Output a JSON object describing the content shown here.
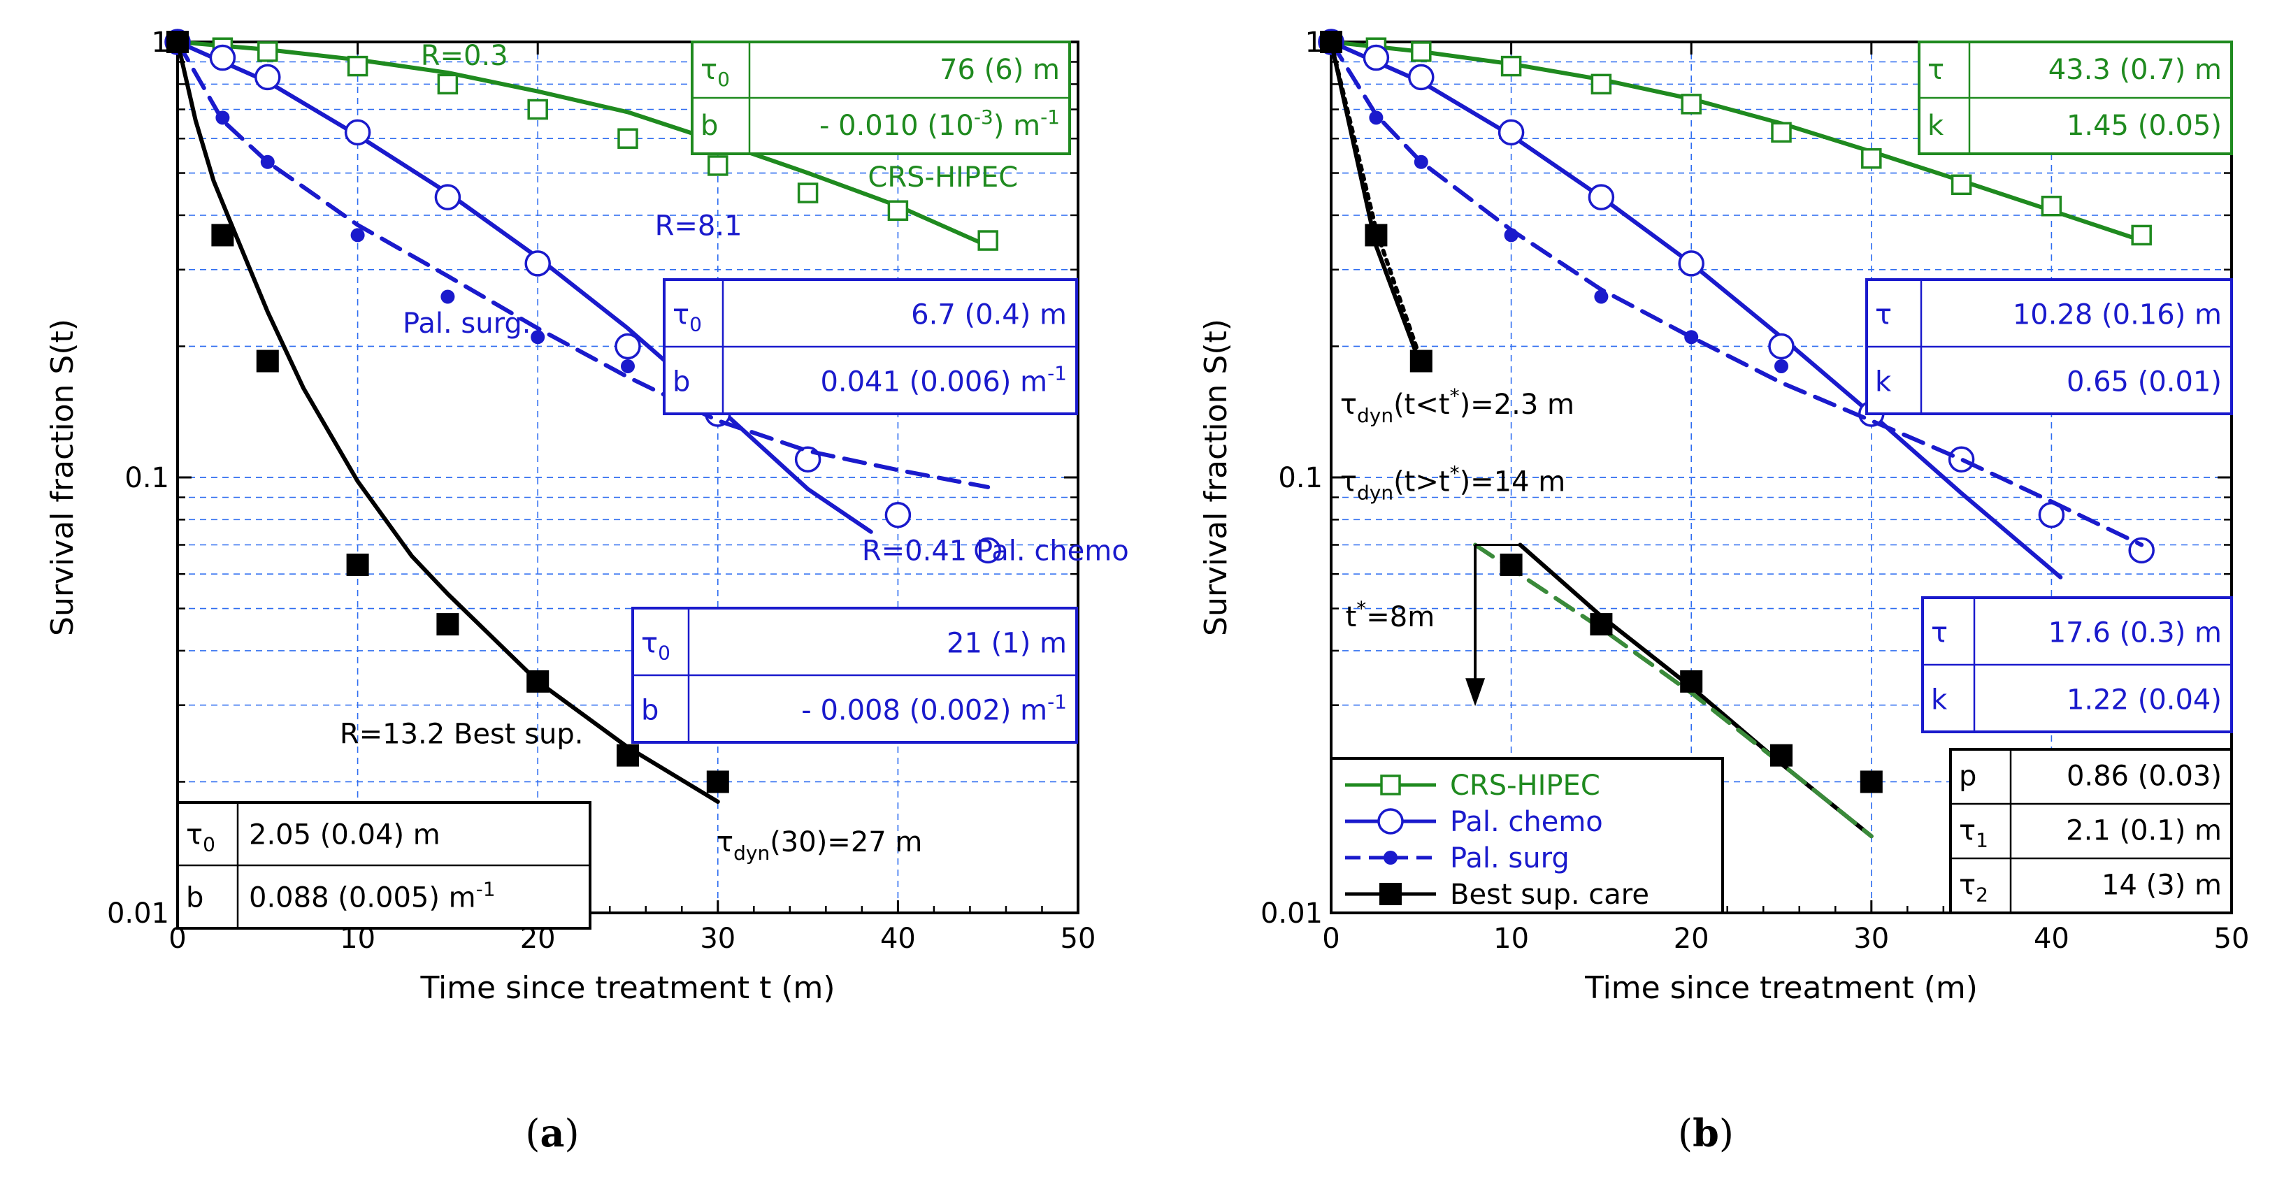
{
  "colors": {
    "green": "#1f8a1f",
    "blue": "#1a1acc",
    "black": "#000000",
    "grid": "#2f6df0",
    "dotted_green": "#3a8a3a"
  },
  "chart_data": [
    {
      "id": "a",
      "type": "scatter",
      "panel_label": "a",
      "xlabel": "Time since treatment t (m)",
      "ylabel": "Survival fraction S(t)",
      "xlim": [
        0,
        50
      ],
      "ylim": [
        0.01,
        1
      ],
      "yscale": "log",
      "x_ticks": [
        "0",
        "10",
        "20",
        "30",
        "40",
        "50"
      ],
      "y_ticks": [
        "0.01",
        "0.1",
        "1"
      ],
      "grid": true,
      "series": [
        {
          "name": "CRS-HIPEC",
          "color": "green",
          "marker": "open-square",
          "x": [
            0,
            2.5,
            5,
            10,
            15,
            20,
            25,
            30,
            35,
            40,
            45
          ],
          "y": [
            1,
            0.97,
            0.95,
            0.88,
            0.8,
            0.7,
            0.6,
            0.52,
            0.45,
            0.41,
            0.35
          ],
          "fit": {
            "x": [
              0,
              5,
              10,
              15,
              20,
              25,
              30,
              35,
              40,
              45
            ],
            "y": [
              1,
              0.96,
              0.91,
              0.85,
              0.77,
              0.69,
              0.59,
              0.5,
              0.42,
              0.34
            ],
            "dash": false
          }
        },
        {
          "name": "Pal. chemo",
          "color": "blue",
          "marker": "open-circle",
          "x": [
            0,
            2.5,
            5,
            10,
            15,
            20,
            25,
            30,
            35,
            40,
            45
          ],
          "y": [
            1,
            0.92,
            0.83,
            0.62,
            0.44,
            0.31,
            0.2,
            0.14,
            0.11,
            0.082,
            0.068
          ],
          "fit": {
            "x": [
              0,
              5,
              10,
              15,
              20,
              25,
              30,
              35,
              38.5
            ],
            "y": [
              1,
              0.81,
              0.61,
              0.45,
              0.32,
              0.22,
              0.145,
              0.094,
              0.075
            ],
            "dash": false
          }
        },
        {
          "name": "Pal. surg",
          "color": "blue",
          "marker": "dot",
          "x": [
            0,
            2.5,
            5,
            10,
            15,
            20,
            25
          ],
          "y": [
            1,
            0.67,
            0.53,
            0.36,
            0.26,
            0.21,
            0.18
          ],
          "fit": {
            "x": [
              0,
              2.5,
              5,
              10,
              15,
              20,
              25,
              30,
              35,
              40,
              45
            ],
            "y": [
              1,
              0.66,
              0.53,
              0.38,
              0.29,
              0.22,
              0.17,
              0.135,
              0.115,
              0.104,
              0.095
            ],
            "dash": true
          }
        },
        {
          "name": "Best sup.",
          "color": "black",
          "marker": "filled-square",
          "x": [
            0,
            2.5,
            5,
            10,
            15,
            20,
            25,
            30
          ],
          "y": [
            1,
            0.36,
            0.185,
            0.063,
            0.046,
            0.034,
            0.023,
            0.02
          ],
          "fit": {
            "x": [
              0,
              1,
              2,
              3,
              5,
              7,
              10,
              13,
              15,
              20,
              25,
              30
            ],
            "y": [
              1,
              0.66,
              0.48,
              0.38,
              0.24,
              0.16,
              0.098,
              0.066,
              0.054,
              0.034,
              0.024,
              0.018
            ],
            "dash": false
          }
        }
      ],
      "annotations": [
        {
          "text": "R=0.3",
          "color": "green",
          "at": [
            13.5,
            0.885
          ]
        },
        {
          "text": "CRS-HIPEC",
          "color": "green",
          "at": [
            42.5,
            0.465
          ]
        },
        {
          "text": "R=8.1",
          "color": "blue",
          "at": [
            26.5,
            0.36
          ]
        },
        {
          "text": "Pal. surg.",
          "color": "blue",
          "at": [
            12.5,
            0.215
          ]
        },
        {
          "text": "R=0.41 Pal. chemo",
          "color": "blue",
          "at": [
            38,
            0.0645
          ]
        },
        {
          "text": "R=13.2  Best sup.",
          "color": "black",
          "at": [
            9,
            0.0245
          ]
        }
      ],
      "tau_dyn_note": {
        "base": "τ",
        "sub": "dyn",
        "rest": "(30)=27 m"
      },
      "tables": [
        {
          "color": "green",
          "rows": [
            {
              "sym": "τ",
              "sub": "0",
              "val": "76 (6) m"
            },
            {
              "sym": "b",
              "sub": "",
              "val": "- 0.010 (10",
              "sup": "-3",
              "tail": ") m",
              "sup2": "-1"
            }
          ]
        },
        {
          "color": "blue",
          "rows": [
            {
              "sym": "τ",
              "sub": "0",
              "val": "6.7 (0.4) m"
            },
            {
              "sym": "b",
              "sub": "",
              "val": "0.041 (0.006) m",
              "sup": "-1"
            }
          ]
        },
        {
          "color": "blue",
          "rows": [
            {
              "sym": "τ",
              "sub": "0",
              "val": "21 (1) m"
            },
            {
              "sym": "b",
              "sub": "",
              "val": "- 0.008 (0.002) m",
              "sup": "-1"
            }
          ]
        },
        {
          "color": "black",
          "rows": [
            {
              "sym": "τ",
              "sub": "0",
              "val": "2.05 (0.04) m"
            },
            {
              "sym": "b",
              "sub": "",
              "val": "0.088 (0.005) m",
              "sup": "-1"
            }
          ]
        }
      ]
    },
    {
      "id": "b",
      "type": "scatter",
      "panel_label": "b",
      "xlabel": "Time since treatment (m)",
      "ylabel": "Survival fraction S(t)",
      "xlim": [
        0,
        50
      ],
      "ylim": [
        0.01,
        1
      ],
      "yscale": "log",
      "x_ticks": [
        "0",
        "10",
        "20",
        "30",
        "40",
        "50"
      ],
      "y_ticks": [
        "0.01",
        "0.1",
        "1"
      ],
      "grid": true,
      "series": [
        {
          "name": "CRS-HIPEC",
          "color": "green",
          "marker": "open-square",
          "x": [
            0,
            2.5,
            5,
            10,
            15,
            20,
            25,
            30,
            35,
            40,
            45
          ],
          "y": [
            1,
            0.97,
            0.95,
            0.88,
            0.8,
            0.72,
            0.62,
            0.54,
            0.47,
            0.42,
            0.36
          ],
          "fit": {
            "x": [
              0,
              5,
              10,
              15,
              20,
              25,
              30,
              35,
              40,
              45
            ],
            "y": [
              1,
              0.95,
              0.89,
              0.82,
              0.74,
              0.65,
              0.56,
              0.48,
              0.41,
              0.35
            ],
            "dash": false
          }
        },
        {
          "name": "Pal. chemo",
          "color": "blue",
          "marker": "open-circle",
          "x": [
            0,
            2.5,
            5,
            10,
            15,
            20,
            25,
            30,
            35,
            40,
            45
          ],
          "y": [
            1,
            0.92,
            0.83,
            0.62,
            0.44,
            0.31,
            0.2,
            0.14,
            0.11,
            0.082,
            0.068
          ],
          "fit": {
            "x": [
              0,
              5,
              10,
              15,
              20,
              25,
              30,
              35,
              40.5
            ],
            "y": [
              1,
              0.81,
              0.61,
              0.44,
              0.31,
              0.21,
              0.14,
              0.092,
              0.059
            ],
            "dash": false
          }
        },
        {
          "name": "Pal. surg",
          "color": "blue",
          "marker": "dot",
          "x": [
            0,
            2.5,
            5,
            10,
            15,
            20,
            25
          ],
          "y": [
            1,
            0.67,
            0.53,
            0.36,
            0.26,
            0.21,
            0.18
          ],
          "fit": {
            "x": [
              0,
              2.5,
              5,
              10,
              15,
              20,
              25,
              30,
              35,
              40,
              45
            ],
            "y": [
              1,
              0.68,
              0.53,
              0.37,
              0.27,
              0.21,
              0.165,
              0.135,
              0.11,
              0.088,
              0.07
            ],
            "dash": true
          }
        },
        {
          "name": "Best sup. care",
          "color": "black",
          "marker": "filled-square",
          "x": [
            0,
            2.5,
            5,
            10,
            15,
            20,
            25,
            30
          ],
          "y": [
            1,
            0.36,
            0.185,
            0.063,
            0.046,
            0.034,
            0.023,
            0.02
          ],
          "fit_segments": [
            {
              "x": [
                0,
                2.5,
                5
              ],
              "y": [
                1,
                0.34,
                0.18
              ],
              "color": "black",
              "style": "solid"
            },
            {
              "x": [
                0,
                2.5,
                5
              ],
              "y": [
                1,
                0.37,
                0.185
              ],
              "color": "black",
              "style": "dotted"
            },
            {
              "x": [
                10.5,
                15,
                20,
                25,
                30
              ],
              "y": [
                0.07,
                0.048,
                0.033,
                0.022,
                0.015
              ],
              "color": "black",
              "style": "solid"
            },
            {
              "x": [
                8,
                15,
                20,
                25,
                30
              ],
              "y": [
                0.07,
                0.045,
                0.032,
                0.022,
                0.015
              ],
              "color": "dotted_green",
              "style": "dashed"
            }
          ]
        }
      ],
      "annotations": [
        {
          "kind": "tau",
          "base": "τ",
          "sub": "dyn",
          "pre": "(t<t",
          "sup": "*",
          "post": ")=2.3 m",
          "at": [
            0.5,
            0.14
          ]
        },
        {
          "kind": "tau",
          "base": "τ",
          "sub": "dyn",
          "pre": "(t>t",
          "sup": "*",
          "post": ")=14 m",
          "at": [
            0.5,
            0.093
          ]
        },
        {
          "kind": "tstar",
          "base": "t",
          "sup": "*",
          "post": "=8m",
          "at": [
            0.8,
            0.0455
          ]
        }
      ],
      "arrow": {
        "x": 8,
        "y_from": 0.07,
        "y_to": 0.0305
      },
      "legend": {
        "placement": "bottom-left",
        "entries": [
          {
            "label": "CRS-HIPEC",
            "color": "green",
            "marker": "open-square",
            "line": "solid"
          },
          {
            "label": "Pal. chemo",
            "color": "blue",
            "marker": "open-circle",
            "line": "solid"
          },
          {
            "label": "Pal. surg",
            "color": "blue",
            "marker": "dot",
            "line": "dashed"
          },
          {
            "label": "Best sup. care",
            "color": "black",
            "marker": "filled-square",
            "line": "solid"
          }
        ]
      },
      "tables": [
        {
          "color": "green",
          "rows": [
            {
              "sym": "τ",
              "sub": "",
              "val": "43.3 (0.7) m"
            },
            {
              "sym": "k",
              "sub": "",
              "val": "1.45 (0.05)"
            }
          ]
        },
        {
          "color": "blue",
          "rows": [
            {
              "sym": "τ",
              "sub": "",
              "val": "10.28 (0.16) m"
            },
            {
              "sym": "k",
              "sub": "",
              "val": "0.65 (0.01)"
            }
          ]
        },
        {
          "color": "blue",
          "rows": [
            {
              "sym": "τ",
              "sub": "",
              "val": "17.6 (0.3) m"
            },
            {
              "sym": "k",
              "sub": "",
              "val": "1.22 (0.04)"
            }
          ]
        },
        {
          "color": "black",
          "rows": [
            {
              "sym": "p",
              "sub": "",
              "val": "0.86 (0.03)"
            },
            {
              "sym": "τ",
              "sub": "1",
              "val": "2.1 (0.1) m"
            },
            {
              "sym": "τ",
              "sub": "2",
              "val": "14 (3) m"
            }
          ]
        }
      ]
    }
  ]
}
